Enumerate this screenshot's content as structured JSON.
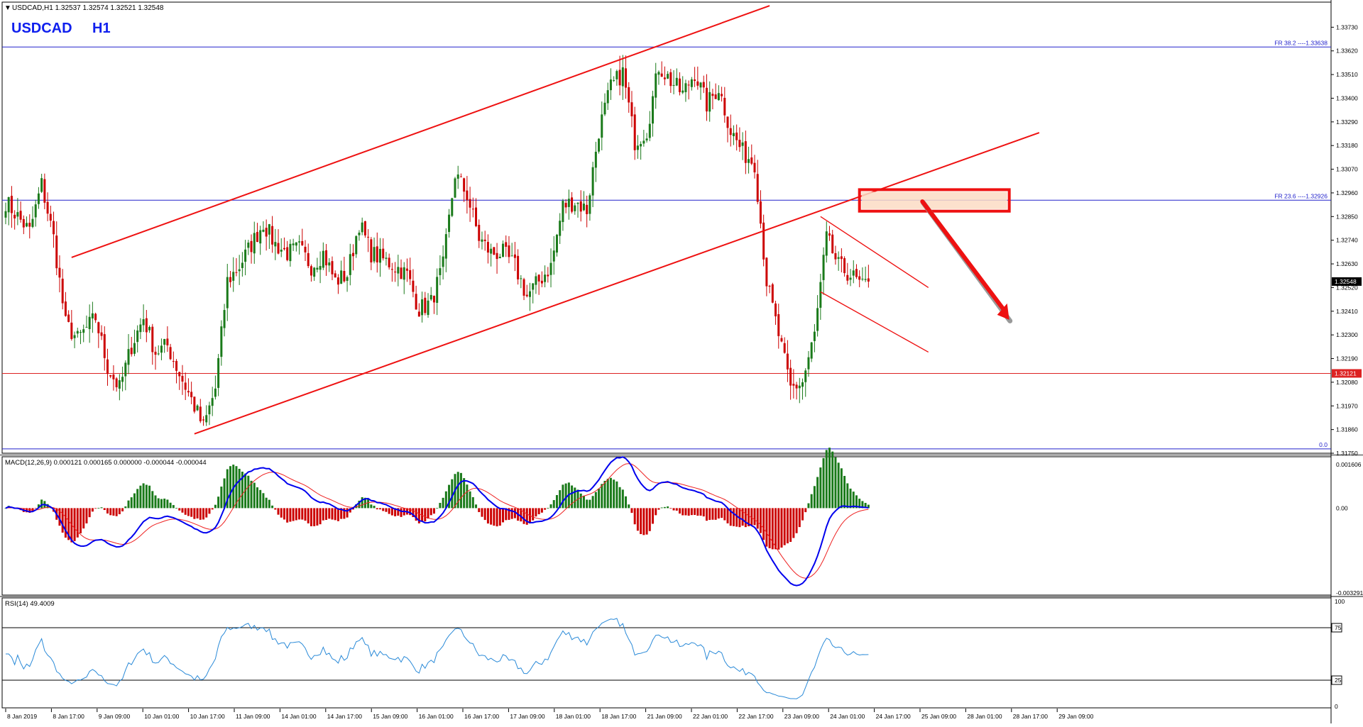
{
  "header": {
    "info_line": "USDCAD,H1  1.32537 1.32574 1.32521 1.32548",
    "symbol": "USDCAD",
    "timeframe": "H1"
  },
  "colors": {
    "bull": "#1a7a1a",
    "bear": "#cc0000",
    "macd_line": "#0000ee",
    "signal_line": "#ee2222",
    "rsi_line": "#2a8ad8",
    "channel": "#ee1111",
    "fib_line": "#2222cc",
    "support_line": "#dd2222",
    "zone_fill": "#fbdcc4"
  },
  "chart_data": [
    {
      "type": "candlestick",
      "pane": "price",
      "symbol": "USDCAD",
      "timeframe": "H1",
      "ylim": [
        1.3175,
        1.3384
      ],
      "y_ticks": [
        "1.33730",
        "1.33620",
        "1.33510",
        "1.33400",
        "1.33290",
        "1.33180",
        "1.33070",
        "1.32960",
        "1.32850",
        "1.32740",
        "1.32630",
        "1.32520",
        "1.32410",
        "1.32300",
        "1.32190",
        "1.32080",
        "1.31970",
        "1.31860",
        "1.31750"
      ],
      "x_labels": [
        "8 Jan 2019",
        "8 Jan 17:00",
        "9 Jan 09:00",
        "10 Jan 01:00",
        "10 Jan 17:00",
        "11 Jan 09:00",
        "14 Jan 01:00",
        "14 Jan 17:00",
        "15 Jan 09:00",
        "16 Jan 01:00",
        "16 Jan 17:00",
        "17 Jan 09:00",
        "18 Jan 01:00",
        "18 Jan 17:00",
        "21 Jan 09:00",
        "22 Jan 01:00",
        "22 Jan 17:00",
        "23 Jan 09:00",
        "24 Jan 01:00",
        "24 Jan 17:00",
        "25 Jan 09:00",
        "28 Jan 01:00",
        "28 Jan 17:00",
        "29 Jan 09:00"
      ],
      "close_anchors": [
        [
          0,
          1.3292
        ],
        [
          4,
          1.3285
        ],
        [
          8,
          1.3278
        ],
        [
          12,
          1.33
        ],
        [
          16,
          1.3275
        ],
        [
          20,
          1.3235
        ],
        [
          24,
          1.3228
        ],
        [
          30,
          1.3238
        ],
        [
          34,
          1.3215
        ],
        [
          38,
          1.3205
        ],
        [
          42,
          1.3225
        ],
        [
          46,
          1.3238
        ],
        [
          50,
          1.3222
        ],
        [
          54,
          1.3225
        ],
        [
          58,
          1.3212
        ],
        [
          62,
          1.32
        ],
        [
          66,
          1.3187
        ],
        [
          70,
          1.3205
        ],
        [
          74,
          1.3255
        ],
        [
          78,
          1.3262
        ],
        [
          82,
          1.3272
        ],
        [
          86,
          1.3282
        ],
        [
          90,
          1.3272
        ],
        [
          94,
          1.3268
        ],
        [
          98,
          1.327
        ],
        [
          102,
          1.3262
        ],
        [
          106,
          1.3268
        ],
        [
          110,
          1.3255
        ],
        [
          114,
          1.3258
        ],
        [
          118,
          1.3282
        ],
        [
          122,
          1.3268
        ],
        [
          126,
          1.3265
        ],
        [
          130,
          1.3262
        ],
        [
          134,
          1.3258
        ],
        [
          138,
          1.3242
        ],
        [
          142,
          1.3245
        ],
        [
          146,
          1.3262
        ],
        [
          150,
          1.3305
        ],
        [
          154,
          1.3295
        ],
        [
          158,
          1.3275
        ],
        [
          162,
          1.3268
        ],
        [
          166,
          1.3268
        ],
        [
          170,
          1.3262
        ],
        [
          174,
          1.3248
        ],
        [
          178,
          1.3255
        ],
        [
          182,
          1.3262
        ],
        [
          186,
          1.329
        ],
        [
          190,
          1.3292
        ],
        [
          194,
          1.3288
        ],
        [
          198,
          1.3325
        ],
        [
          202,
          1.3345
        ],
        [
          206,
          1.3352
        ],
        [
          210,
          1.332
        ],
        [
          214,
          1.3325
        ],
        [
          218,
          1.3355
        ],
        [
          222,
          1.3348
        ],
        [
          226,
          1.3342
        ],
        [
          230,
          1.3352
        ],
        [
          234,
          1.3337
        ],
        [
          238,
          1.3345
        ],
        [
          242,
          1.3325
        ],
        [
          246,
          1.3315
        ],
        [
          250,
          1.331
        ],
        [
          254,
          1.3255
        ],
        [
          258,
          1.323
        ],
        [
          262,
          1.3205
        ],
        [
          266,
          1.3208
        ],
        [
          270,
          1.323
        ],
        [
          274,
          1.3275
        ],
        [
          278,
          1.3262
        ],
        [
          282,
          1.3258
        ],
        [
          286,
          1.3252
        ],
        [
          288,
          1.32548
        ]
      ],
      "markers": {
        "current_price": "1.32548",
        "support_price": "1.32121",
        "fib_lines": [
          {
            "label": "FR 38.2 ----1.33638",
            "price": 1.33638
          },
          {
            "label": "FR 23.6 ----1.32926",
            "price": 1.32926
          },
          {
            "label": "0.0",
            "price": 1.3177
          }
        ]
      },
      "annotations": [
        "ascending channel",
        "descending flag",
        "resistance zone",
        "downward arrow"
      ]
    },
    {
      "type": "bar+line",
      "pane": "macd",
      "title": "MACD(12,26,9) 0.000121 0.000165 0.000000 -0.000044 -0.000044",
      "y_ticks": [
        "0.001606",
        "0.00",
        "-0.003291"
      ],
      "series": [
        {
          "name": "histogram",
          "kind": "bar"
        },
        {
          "name": "macd",
          "kind": "line"
        },
        {
          "name": "signal",
          "kind": "line"
        }
      ]
    },
    {
      "type": "line",
      "pane": "rsi",
      "title": "RSI(14) 49.4009",
      "ylim": [
        0,
        100
      ],
      "levels": [
        75,
        25
      ],
      "y_ticks": [
        "100",
        "75",
        "25",
        "0"
      ],
      "last_value": 49.4009
    }
  ]
}
